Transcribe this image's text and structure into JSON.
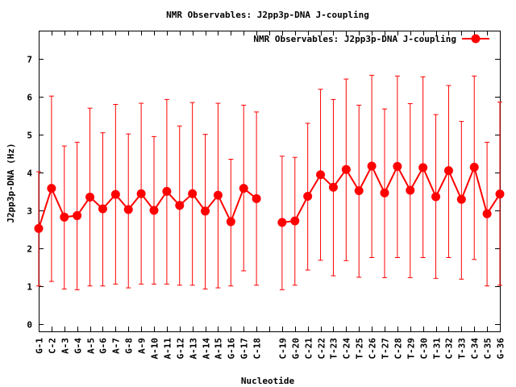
{
  "chart_data": {
    "type": "line",
    "title": "NMR Observables: J2pp3p-DNA J-coupling",
    "xlabel": "Nucleotide",
    "ylabel": "J2pp3p-DNA (Hz)",
    "ylim": [
      -0.2,
      7.75
    ],
    "yticks": [
      0,
      1,
      2,
      3,
      4,
      5,
      6,
      7
    ],
    "grid": false,
    "legend_position": "top-right",
    "color": "#ff0000",
    "categories": [
      "G-1",
      "C-2",
      "A-3",
      "G-4",
      "A-5",
      "G-6",
      "A-7",
      "G-8",
      "A-9",
      "A-10",
      "A-11",
      "G-12",
      "A-13",
      "A-14",
      "A-15",
      "G-16",
      "G-17",
      "C-18",
      "",
      "C-19",
      "G-20",
      "C-21",
      "C-22",
      "T-23",
      "C-24",
      "T-25",
      "C-26",
      "T-27",
      "C-28",
      "T-29",
      "C-30",
      "T-31",
      "C-32",
      "T-33",
      "C-34",
      "C-35",
      "G-36"
    ],
    "series": [
      {
        "name": "NMR Observables: J2pp3p-DNA J-coupling",
        "values": [
          2.52,
          3.58,
          2.82,
          2.86,
          3.35,
          3.04,
          3.42,
          3.02,
          3.44,
          3.0,
          3.5,
          3.13,
          3.44,
          2.98,
          3.4,
          2.7,
          3.58,
          3.31,
          null,
          2.68,
          2.72,
          3.37,
          3.94,
          3.61,
          4.08,
          3.52,
          4.17,
          3.46,
          4.16,
          3.53,
          4.13,
          3.36,
          4.05,
          3.29,
          4.14,
          2.91,
          3.43
        ],
        "lower": [
          1.0,
          1.12,
          0.92,
          0.9,
          1.0,
          1.0,
          1.05,
          0.95,
          1.05,
          1.05,
          1.05,
          1.02,
          1.02,
          0.92,
          0.95,
          1.0,
          1.4,
          1.02,
          null,
          0.9,
          1.02,
          1.42,
          1.68,
          1.27,
          1.67,
          1.23,
          1.75,
          1.22,
          1.75,
          1.22,
          1.75,
          1.2,
          1.75,
          1.18,
          1.7,
          1.0,
          1.02
        ],
        "upper": [
          4.02,
          6.02,
          4.7,
          4.8,
          5.7,
          5.05,
          5.8,
          5.02,
          5.83,
          4.95,
          5.93,
          5.23,
          5.85,
          5.01,
          5.83,
          4.35,
          5.78,
          5.6,
          null,
          4.43,
          4.4,
          5.3,
          6.2,
          5.93,
          6.47,
          5.78,
          6.57,
          5.68,
          6.55,
          5.82,
          6.53,
          5.53,
          6.3,
          5.35,
          6.55,
          4.8,
          5.86
        ]
      }
    ]
  }
}
